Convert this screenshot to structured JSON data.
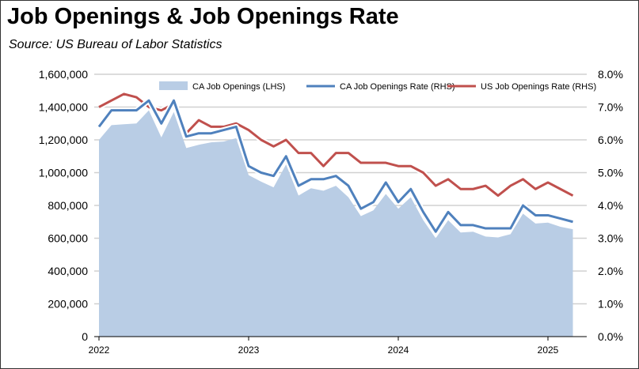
{
  "chart_data": {
    "type": "area+line",
    "title": "Job Openings & Job Openings Rate",
    "subtitle": "Source:  US Bureau of Labor Statistics",
    "x": [
      "Jan 2022",
      "Feb 2022",
      "Mar 2022",
      "Apr 2022",
      "May 2022",
      "Jun 2022",
      "Jul 2022",
      "Aug 2022",
      "Sep 2022",
      "Oct 2022",
      "Nov 2022",
      "Dec 2022",
      "Jan 2023",
      "Feb 2023",
      "Mar 2023",
      "Apr 2023",
      "May 2023",
      "Jun 2023",
      "Jul 2023",
      "Aug 2023",
      "Sep 2023",
      "Oct 2023",
      "Nov 2023",
      "Dec 2023",
      "Jan 2024",
      "Feb 2024",
      "Mar 2024",
      "Apr 2024",
      "May 2024",
      "Jun 2024",
      "Jul 2024",
      "Aug 2024",
      "Sep 2024",
      "Oct 2024",
      "Nov 2024",
      "Dec 2024",
      "Jan 2025",
      "Feb 2025",
      "Mar 2025"
    ],
    "x_tick_labels": [
      "2022",
      "2023",
      "2024",
      "2025"
    ],
    "left_axis": {
      "ylim": [
        0,
        1600000
      ],
      "ticks": [
        "0",
        "200,000",
        "400,000",
        "600,000",
        "800,000",
        "1,000,000",
        "1,200,000",
        "1,400,000",
        "1,600,000"
      ]
    },
    "right_axis": {
      "ylim": [
        0,
        8
      ],
      "ticks": [
        "0.0%",
        "1.0%",
        "2.0%",
        "3.0%",
        "4.0%",
        "5.0%",
        "6.0%",
        "7.0%",
        "8.0%"
      ]
    },
    "grid": true,
    "legend_position": "top",
    "series": [
      {
        "name": "CA Job Openings (LHS)",
        "type": "area",
        "axis": "left",
        "color": "#b9cde5",
        "values": [
          1200000,
          1290000,
          1295000,
          1300000,
          1380000,
          1215000,
          1370000,
          1150000,
          1170000,
          1185000,
          1190000,
          1210000,
          985000,
          945000,
          910000,
          1050000,
          860000,
          905000,
          890000,
          920000,
          850000,
          735000,
          770000,
          870000,
          780000,
          850000,
          710000,
          600000,
          710000,
          635000,
          640000,
          610000,
          605000,
          625000,
          750000,
          690000,
          695000,
          670000,
          655000
        ]
      },
      {
        "name": "CA Job Openings Rate (RHS)",
        "type": "line",
        "axis": "right",
        "color": "#4f81bd",
        "values": [
          6.4,
          6.9,
          6.9,
          6.9,
          7.2,
          6.5,
          7.2,
          6.1,
          6.2,
          6.2,
          6.3,
          6.4,
          5.2,
          5.0,
          4.9,
          5.5,
          4.6,
          4.8,
          4.8,
          4.9,
          4.6,
          3.9,
          4.1,
          4.7,
          4.1,
          4.5,
          3.8,
          3.2,
          3.8,
          3.4,
          3.4,
          3.3,
          3.3,
          3.3,
          4.0,
          3.7,
          3.7,
          3.6,
          3.5
        ]
      },
      {
        "name": "US Job Openings Rate (RHS)",
        "type": "line",
        "axis": "right",
        "color": "#c0504d",
        "values": [
          7.0,
          7.2,
          7.4,
          7.3,
          7.0,
          6.9,
          7.1,
          6.2,
          6.6,
          6.4,
          6.4,
          6.5,
          6.3,
          6.0,
          5.8,
          6.0,
          5.6,
          5.6,
          5.2,
          5.6,
          5.6,
          5.3,
          5.3,
          5.3,
          5.2,
          5.2,
          5.0,
          4.6,
          4.8,
          4.5,
          4.5,
          4.6,
          4.3,
          4.6,
          4.8,
          4.5,
          4.7,
          4.5,
          4.3
        ]
      }
    ]
  }
}
